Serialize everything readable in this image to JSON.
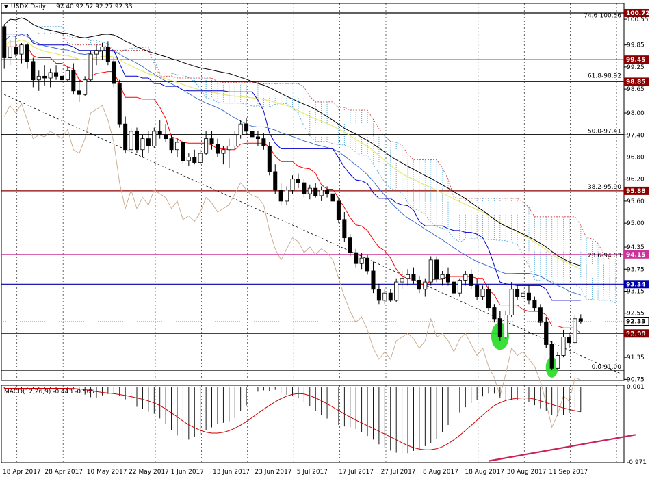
{
  "header": {
    "symbol_label": "USDX,Daily",
    "ohlc_label": "92.40 92.52 92.27 92.33"
  },
  "macd_label": "MACD(12,26,9) -0.443 -0.505",
  "colors": {
    "background": "#ffffff",
    "candle_bull": "#ffffff",
    "candle_bear": "#000000",
    "tenkan": "#ff0000",
    "kijun": "#0000cc",
    "ma_blue": "#3366cc",
    "ma_black": "#000000",
    "ma_yellow": "#e8e86e",
    "chikou": "#c8a88a",
    "cloud": "#4aa3d8",
    "fib_line": "#000000",
    "level_maroon": "#8b0000",
    "level_magenta": "#cc3399",
    "level_blue": "#0000aa",
    "signal_red": "#cc0000",
    "trend_pink": "#cc2255",
    "highlight_green": "#22dd22"
  },
  "chart_data": {
    "type": "candlestick",
    "ylim": [
      90.72,
      100.98
    ],
    "y_ticks": [
      "100.55",
      "99.85",
      "99.25",
      "98.65",
      "98.00",
      "97.40",
      "96.80",
      "96.20",
      "95.60",
      "95.00",
      "94.35",
      "93.75",
      "93.15",
      "92.55",
      "91.95",
      "91.35",
      "90.75"
    ],
    "x_labels": [
      "18 Apr 2017",
      "28 Apr 2017",
      "10 May 2017",
      "22 May 2017",
      "1 Jun 2017",
      "13 Jun 2017",
      "23 Jun 2017",
      "5 Jul 2017",
      "17 Jul 2017",
      "27 Jul 2017",
      "8 Aug 2017",
      "18 Aug 2017",
      "30 Aug 2017",
      "11 Sep 2017"
    ],
    "label_index": [
      0,
      8,
      16,
      24,
      32,
      40,
      48,
      56,
      64,
      72,
      80,
      88,
      96,
      104
    ],
    "candles": [
      [
        100.35,
        100.4,
        99.2,
        99.5
      ],
      [
        99.5,
        100.0,
        99.3,
        99.8
      ],
      [
        99.8,
        100.1,
        99.5,
        99.6
      ],
      [
        99.6,
        99.9,
        99.35,
        99.85
      ],
      [
        99.85,
        99.9,
        99.2,
        99.4
      ],
      [
        99.4,
        99.5,
        98.7,
        98.9
      ],
      [
        98.9,
        99.15,
        98.6,
        99.0
      ],
      [
        99.0,
        99.3,
        98.75,
        98.95
      ],
      [
        98.95,
        99.2,
        98.7,
        99.1
      ],
      [
        99.1,
        99.3,
        98.9,
        99.0
      ],
      [
        99.0,
        99.2,
        98.8,
        98.9
      ],
      [
        98.9,
        99.25,
        98.85,
        99.15
      ],
      [
        99.15,
        99.35,
        98.5,
        98.6
      ],
      [
        98.6,
        98.9,
        98.3,
        98.5
      ],
      [
        98.5,
        99.0,
        98.45,
        98.9
      ],
      [
        98.9,
        99.7,
        98.85,
        99.6
      ],
      [
        99.6,
        99.85,
        99.3,
        99.7
      ],
      [
        99.7,
        99.9,
        99.45,
        99.8
      ],
      [
        99.8,
        99.95,
        99.3,
        99.4
      ],
      [
        99.4,
        99.5,
        98.7,
        98.8
      ],
      [
        98.8,
        98.9,
        97.6,
        97.7
      ],
      [
        97.7,
        97.9,
        96.9,
        97.0
      ],
      [
        97.0,
        97.6,
        96.9,
        97.5
      ],
      [
        97.5,
        97.6,
        96.9,
        97.0
      ],
      [
        97.0,
        97.4,
        96.8,
        97.3
      ],
      [
        97.3,
        97.5,
        96.9,
        97.1
      ],
      [
        97.1,
        97.6,
        97.05,
        97.5
      ],
      [
        97.5,
        97.8,
        97.3,
        97.4
      ],
      [
        97.4,
        97.7,
        97.2,
        97.3
      ],
      [
        97.3,
        97.4,
        96.9,
        97.0
      ],
      [
        97.0,
        97.3,
        96.8,
        97.2
      ],
      [
        97.2,
        97.3,
        96.6,
        96.7
      ],
      [
        96.7,
        96.9,
        96.55,
        96.8
      ],
      [
        96.8,
        97.0,
        96.6,
        96.65
      ],
      [
        96.65,
        97.0,
        96.6,
        96.9
      ],
      [
        96.9,
        97.5,
        96.85,
        97.3
      ],
      [
        97.3,
        97.5,
        97.0,
        97.15
      ],
      [
        97.15,
        97.3,
        96.8,
        96.9
      ],
      [
        96.9,
        97.1,
        96.6,
        97.0
      ],
      [
        97.0,
        97.3,
        96.5,
        97.1
      ],
      [
        97.1,
        97.5,
        97.0,
        97.4
      ],
      [
        97.4,
        97.8,
        97.3,
        97.7
      ],
      [
        97.7,
        97.85,
        97.4,
        97.5
      ],
      [
        97.5,
        97.6,
        97.2,
        97.35
      ],
      [
        97.35,
        97.5,
        97.1,
        97.3
      ],
      [
        97.3,
        97.45,
        97.0,
        97.1
      ],
      [
        97.1,
        97.2,
        96.3,
        96.4
      ],
      [
        96.4,
        96.6,
        95.8,
        95.9
      ],
      [
        95.9,
        96.1,
        95.5,
        95.6
      ],
      [
        95.6,
        96.0,
        95.5,
        95.9
      ],
      [
        95.9,
        96.3,
        95.8,
        96.2
      ],
      [
        96.2,
        96.35,
        95.95,
        96.1
      ],
      [
        96.1,
        96.2,
        95.7,
        95.8
      ],
      [
        95.8,
        96.05,
        95.65,
        95.95
      ],
      [
        95.95,
        96.1,
        95.7,
        95.75
      ],
      [
        95.75,
        96.0,
        95.6,
        95.9
      ],
      [
        95.9,
        96.0,
        95.7,
        95.8
      ],
      [
        95.8,
        95.9,
        95.5,
        95.6
      ],
      [
        95.6,
        95.7,
        95.0,
        95.1
      ],
      [
        95.1,
        95.3,
        94.5,
        94.6
      ],
      [
        94.6,
        94.7,
        94.1,
        94.2
      ],
      [
        94.2,
        94.3,
        93.8,
        93.9
      ],
      [
        93.9,
        94.2,
        93.75,
        94.05
      ],
      [
        94.05,
        94.15,
        93.6,
        93.7
      ],
      [
        93.7,
        93.95,
        93.1,
        93.2
      ],
      [
        93.2,
        93.35,
        92.8,
        92.9
      ],
      [
        92.9,
        93.2,
        92.8,
        93.1
      ],
      [
        93.1,
        93.2,
        92.85,
        92.9
      ],
      [
        92.9,
        93.5,
        92.85,
        93.4
      ],
      [
        93.4,
        93.7,
        93.2,
        93.5
      ],
      [
        93.5,
        93.75,
        93.3,
        93.6
      ],
      [
        93.6,
        93.8,
        93.35,
        93.45
      ],
      [
        93.45,
        93.55,
        93.1,
        93.2
      ],
      [
        93.2,
        93.5,
        93.0,
        93.4
      ],
      [
        93.4,
        94.1,
        93.3,
        94.0
      ],
      [
        94.0,
        94.1,
        93.4,
        93.5
      ],
      [
        93.5,
        93.7,
        93.3,
        93.6
      ],
      [
        93.6,
        93.8,
        93.3,
        93.4
      ],
      [
        93.4,
        93.5,
        93.0,
        93.1
      ],
      [
        93.1,
        93.5,
        93.0,
        93.45
      ],
      [
        93.45,
        93.7,
        93.3,
        93.6
      ],
      [
        93.6,
        93.75,
        93.2,
        93.3
      ],
      [
        93.3,
        93.5,
        92.9,
        93.0
      ],
      [
        93.0,
        93.3,
        92.9,
        93.2
      ],
      [
        93.2,
        93.3,
        92.6,
        92.7
      ],
      [
        92.7,
        92.8,
        92.3,
        92.4
      ],
      [
        92.4,
        92.6,
        91.8,
        91.9
      ],
      [
        91.9,
        92.6,
        91.85,
        92.5
      ],
      [
        92.5,
        93.4,
        92.45,
        93.2
      ],
      [
        93.2,
        93.3,
        92.9,
        93.0
      ],
      [
        93.0,
        93.2,
        92.9,
        93.1
      ],
      [
        93.1,
        93.3,
        92.8,
        92.9
      ],
      [
        92.9,
        93.0,
        92.6,
        92.7
      ],
      [
        92.7,
        92.8,
        92.2,
        92.3
      ],
      [
        92.3,
        92.45,
        91.6,
        91.7
      ],
      [
        91.7,
        91.8,
        91.0,
        91.05
      ],
      [
        91.05,
        91.5,
        91.0,
        91.4
      ],
      [
        91.4,
        92.1,
        91.35,
        91.9
      ],
      [
        91.9,
        92.0,
        91.6,
        91.75
      ],
      [
        91.75,
        92.5,
        91.7,
        92.4
      ],
      [
        92.4,
        92.52,
        92.27,
        92.33
      ]
    ],
    "levels": [
      {
        "label": "100.72",
        "value": 100.72,
        "color": "#000000",
        "box": "#8b0000",
        "text": "74.6-100.56",
        "text_value": 100.56
      },
      {
        "label": "99.45",
        "value": 99.45,
        "color": "#8b0000",
        "box": "#8b0000",
        "text": "",
        "text_value": 99.45
      },
      {
        "label": "98.85",
        "value": 98.85,
        "color": "#8b0000",
        "box": "#8b0000",
        "text": "61.8-98.92",
        "text_value": 98.92
      },
      {
        "label": "",
        "value": 97.41,
        "color": "#000000",
        "box": "",
        "text": "50.0-97.41",
        "text_value": 97.41
      },
      {
        "label": "95.88",
        "value": 95.88,
        "color": "#8b0000",
        "box": "#8b0000",
        "text": "38.2-95.90",
        "text_value": 95.9
      },
      {
        "label": "94.15",
        "value": 94.15,
        "color": "#cc3399",
        "box": "#cc3399",
        "text": "23.6-94.03",
        "text_value": 94.03
      },
      {
        "label": "93.34",
        "value": 93.34,
        "color": "#0000aa",
        "box": "#0000aa",
        "text": "",
        "text_value": 93.34
      },
      {
        "label": "92.00",
        "value": 92.0,
        "color": "#8b0000",
        "box": "#8b0000",
        "text": "",
        "text_value": 92.0
      },
      {
        "label": "",
        "value": 91.0,
        "color": "#000000",
        "box": "",
        "text": "0.0-91.00",
        "text_value": 91.0
      }
    ],
    "current_price_label": "92.33",
    "current_price": 92.33,
    "trendline_dashed": [
      [
        0,
        98.5
      ],
      [
        107,
        90.9
      ]
    ],
    "highlights": [
      {
        "index": 86,
        "value": 92.0
      },
      {
        "index": 95,
        "value": 91.15
      }
    ],
    "macd": {
      "ylim": [
        -0.98,
        0.02
      ],
      "y_ticks": [
        "0.001",
        "-0.971"
      ],
      "trendline": [
        [
          84,
          -0.96
        ],
        [
          110,
          -0.62
        ]
      ]
    }
  }
}
